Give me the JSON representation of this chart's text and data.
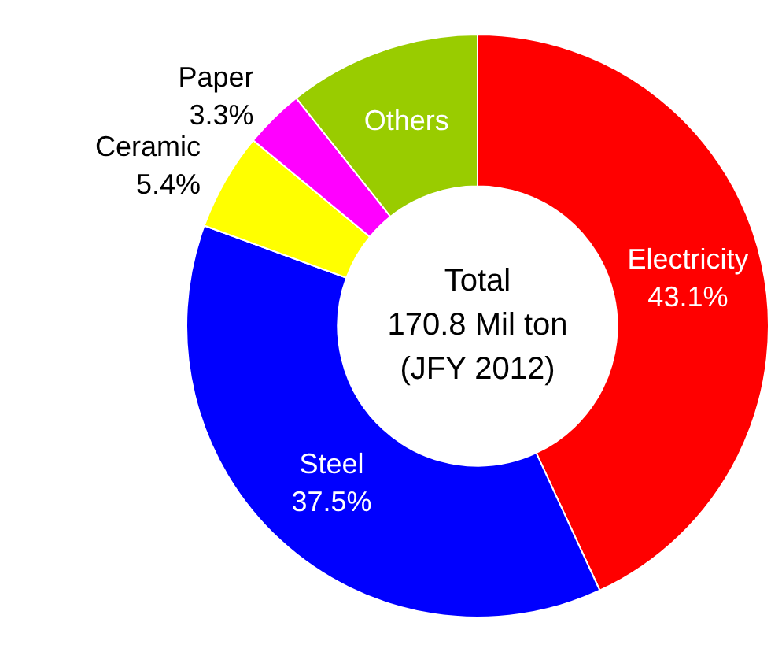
{
  "chart_data": {
    "type": "donut",
    "categories": [
      "Electricity",
      "Steel",
      "Ceramic",
      "Paper",
      "Others"
    ],
    "values": [
      43.1,
      37.5,
      5.4,
      3.3,
      10.7
    ],
    "value_labels": [
      "43.1%",
      "37.5%",
      "5.4%",
      "3.3%",
      null
    ],
    "colors": [
      "#ff0000",
      "#0000ff",
      "#ffff00",
      "#ff00ff",
      "#99cc00"
    ],
    "annotations": [
      "Total",
      "170.8 Mil ton",
      "(JFY 2012)"
    ],
    "legend": false
  }
}
